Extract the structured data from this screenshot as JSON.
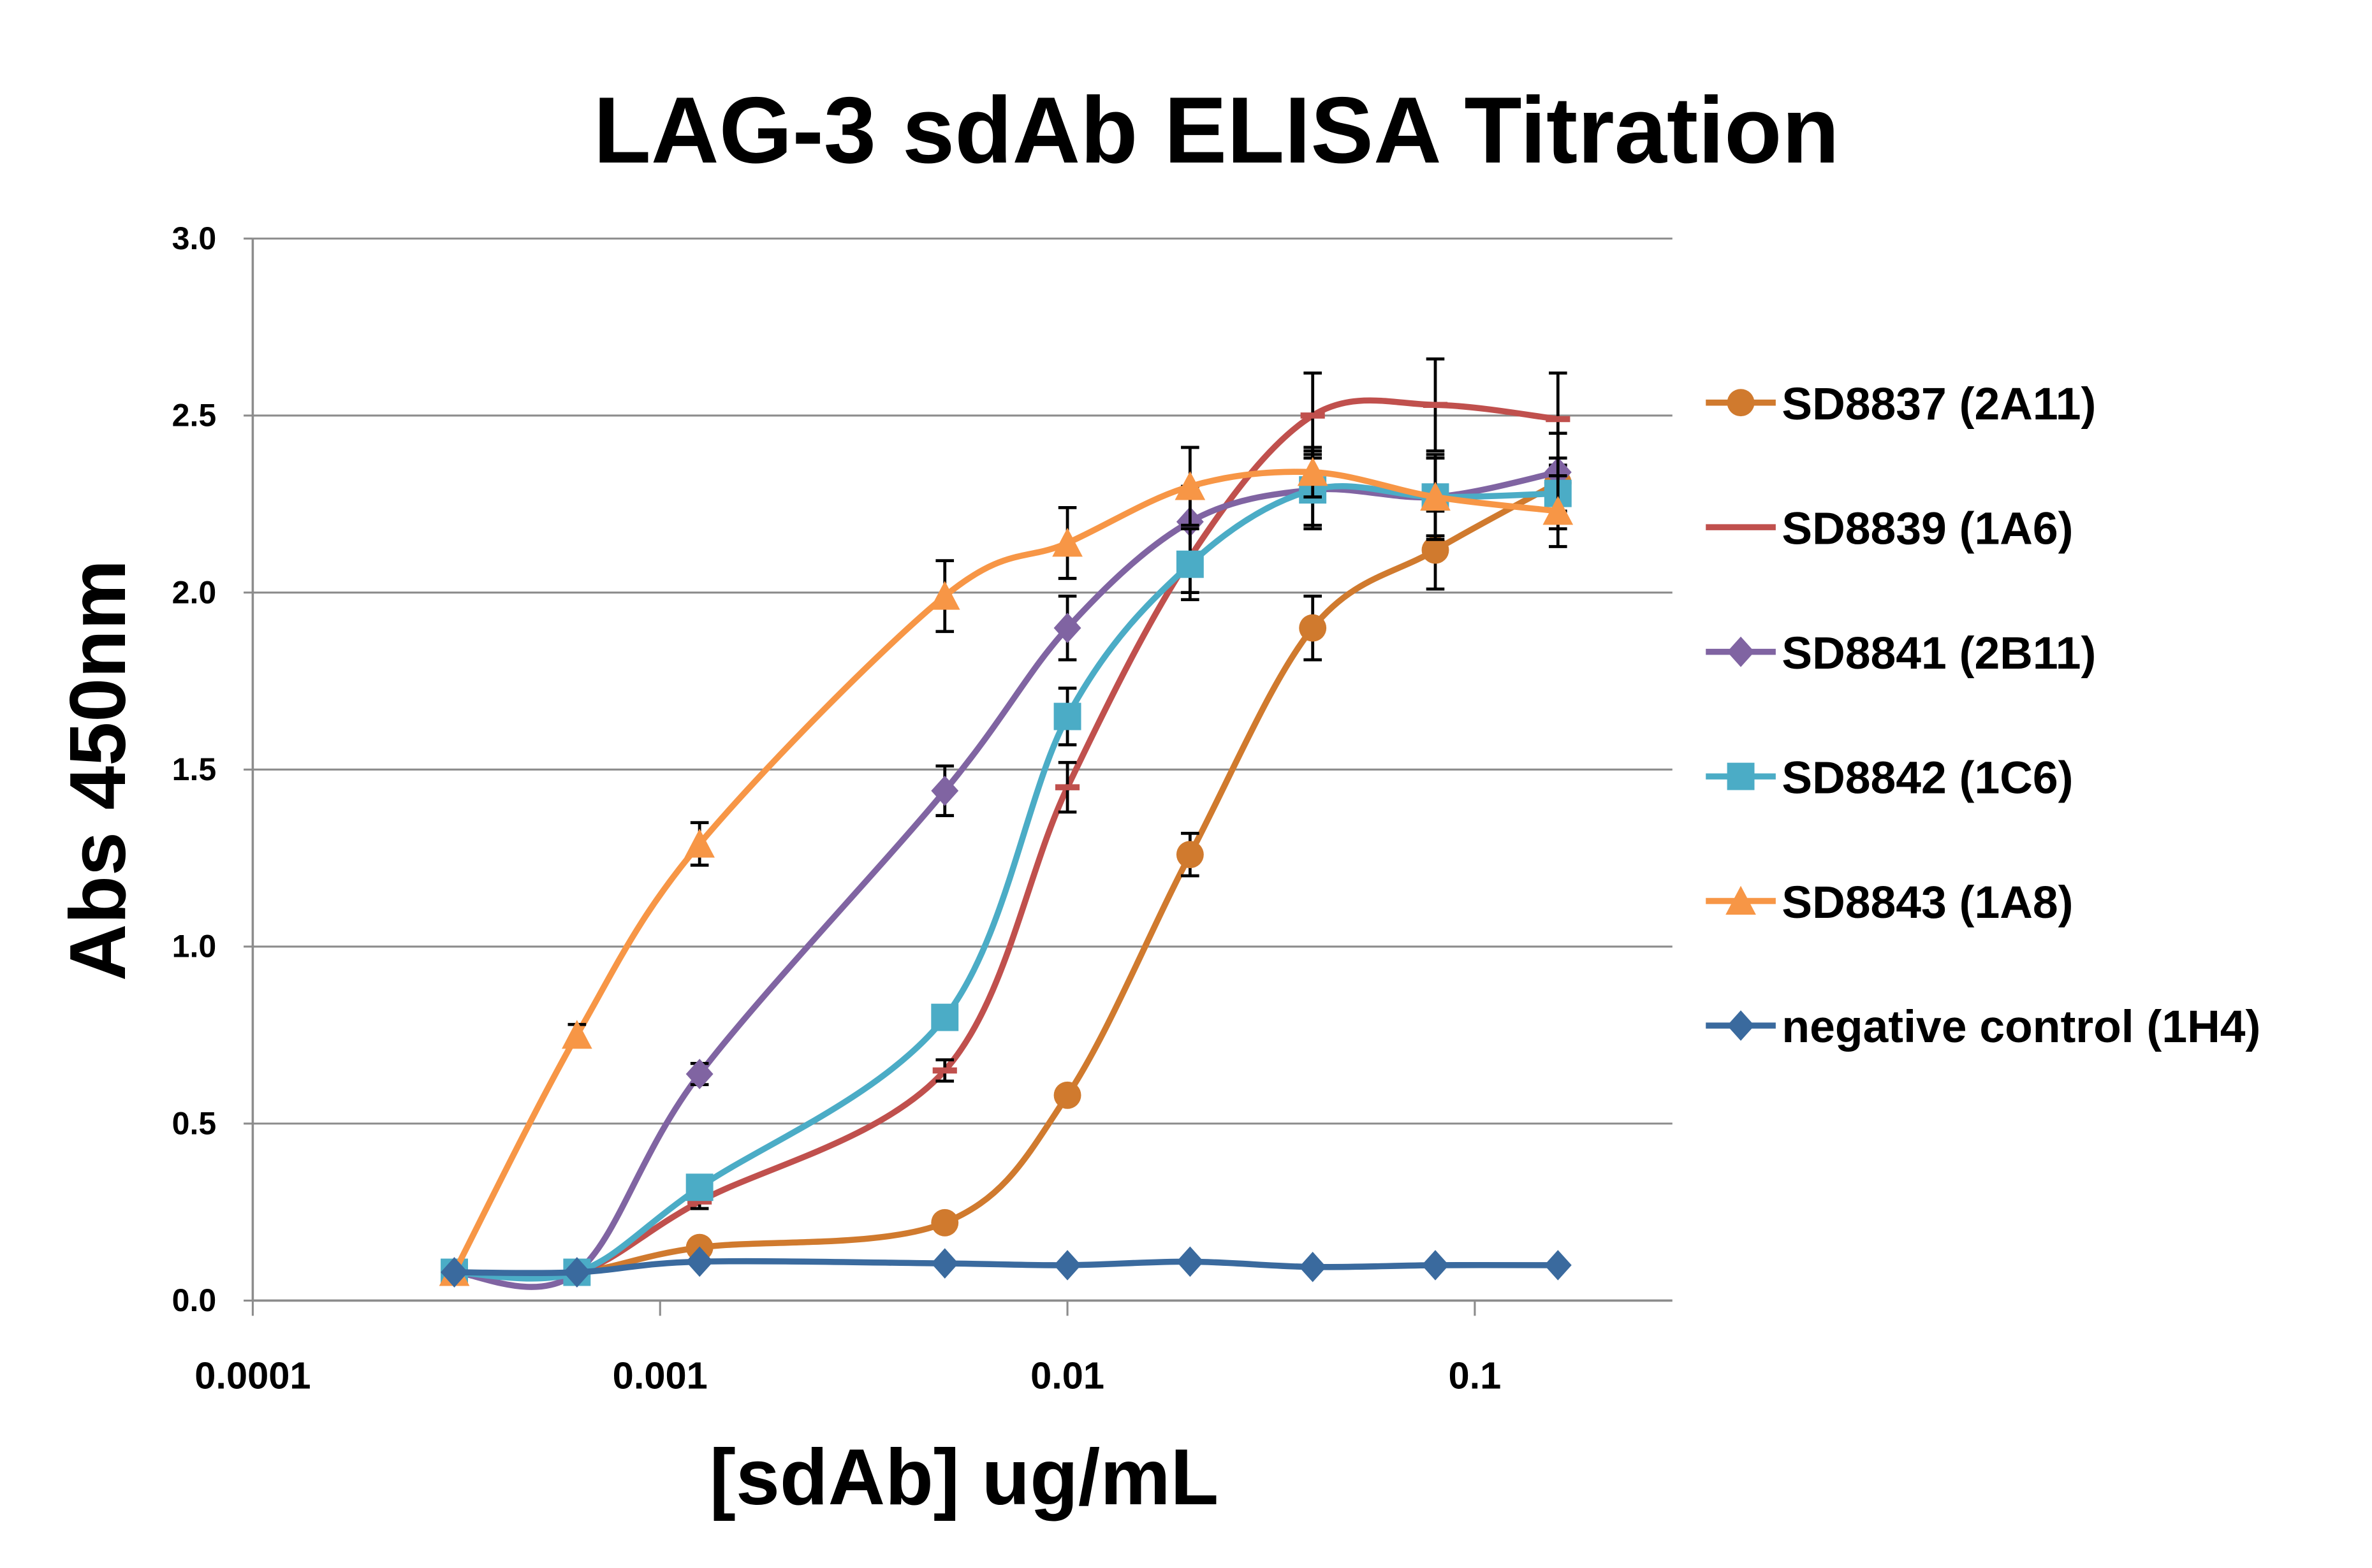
{
  "chart_data": {
    "type": "line",
    "title": "LAG-3 sdAb ELISA Titration",
    "xlabel": "[sdAb] ug/mL",
    "ylabel": "Abs  450nm",
    "xscale": "log",
    "xlim": [
      0.0001,
      0.3
    ],
    "ylim": [
      0,
      3.0
    ],
    "xticks": [
      "0.0001",
      "0.001",
      "0.01",
      "0.1"
    ],
    "yticks": [
      "0.0",
      "0.5",
      "1.0",
      "1.5",
      "2.0",
      "2.5",
      "3.0"
    ],
    "grid": "horizontal",
    "legend_position": "right",
    "x": [
      0.0003125,
      0.000625,
      0.00125,
      0.005,
      0.01,
      0.02,
      0.04,
      0.08,
      0.16
    ],
    "series": [
      {
        "name": "SD8837 (2A11)",
        "color": "#D07A2E",
        "marker": "circle",
        "values": [
          0.08,
          0.08,
          0.15,
          0.22,
          0.58,
          1.26,
          1.9,
          2.12,
          2.31
        ],
        "errors": [
          0,
          0,
          0,
          0,
          0,
          0.06,
          0.09,
          0.11,
          0
        ]
      },
      {
        "name": "SD8839 (1A6)",
        "color": "#C0504D",
        "marker": "dash",
        "values": [
          0.08,
          0.08,
          0.28,
          0.65,
          1.45,
          2.1,
          2.5,
          2.53,
          2.49
        ],
        "errors": [
          0,
          0,
          0.02,
          0.03,
          0.07,
          0.1,
          0.12,
          0.13,
          0.13
        ]
      },
      {
        "name": "SD8841 (2B11)",
        "color": "#8064A2",
        "marker": "diamond",
        "values": [
          0.08,
          0.08,
          0.64,
          1.44,
          1.9,
          2.2,
          2.29,
          2.27,
          2.34
        ],
        "errors": [
          0,
          0,
          0.03,
          0.07,
          0.09,
          0.1,
          0.1,
          0.11,
          0.11
        ]
      },
      {
        "name": "SD8842 (1C6)",
        "color": "#4BACC6",
        "marker": "square",
        "values": [
          0.08,
          0.08,
          0.32,
          0.8,
          1.65,
          2.08,
          2.29,
          2.27,
          2.28
        ],
        "errors": [
          0,
          0,
          0,
          0.03,
          0.08,
          0.1,
          0.11,
          0.11,
          0.1
        ]
      },
      {
        "name": "SD8843 (1A8)",
        "color": "#F79646",
        "marker": "triangle",
        "values": [
          0.08,
          0.75,
          1.29,
          1.99,
          2.14,
          2.3,
          2.34,
          2.27,
          2.23
        ],
        "errors": [
          0,
          0.03,
          0.06,
          0.1,
          0.1,
          0.11,
          0.07,
          0.12,
          0.1
        ]
      },
      {
        "name": "negative control (1H4)",
        "color": "#3A6A9E",
        "marker": "diamond",
        "values": [
          0.08,
          0.08,
          0.11,
          0.105,
          0.1,
          0.11,
          0.095,
          0.1,
          0.1
        ],
        "errors": [
          0,
          0,
          0,
          0,
          0,
          0,
          0,
          0,
          0
        ]
      }
    ]
  }
}
